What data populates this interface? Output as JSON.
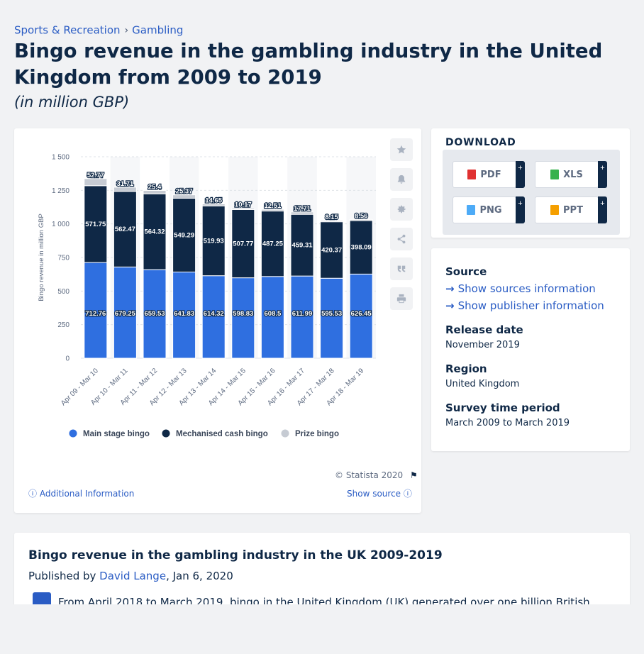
{
  "breadcrumb": [
    "Sports & Recreation",
    "Gambling"
  ],
  "title": "Bingo revenue in the gambling industry in the United Kingdom from 2009 to 2019",
  "subtitle": "(in million GBP)",
  "toolbar_icons": [
    "star-icon",
    "bell-icon",
    "gear-icon",
    "share-icon",
    "quote-icon",
    "print-icon"
  ],
  "download": {
    "heading": "DOWNLOAD",
    "buttons": [
      {
        "label": "PDF",
        "icon": "pdf-file-icon",
        "color": "#e03131"
      },
      {
        "label": "XLS",
        "icon": "xls-file-icon",
        "color": "#37b24d"
      },
      {
        "label": "PNG",
        "icon": "png-file-icon",
        "color": "#4dabf7"
      },
      {
        "label": "PPT",
        "icon": "ppt-file-icon",
        "color": "#f59f00"
      }
    ],
    "plus": "+"
  },
  "info": {
    "source_label": "Source",
    "show_sources": "Show sources information",
    "show_publisher": "Show publisher information",
    "release_label": "Release date",
    "release_value": "November 2019",
    "region_label": "Region",
    "region_value": "United Kingdom",
    "survey_label": "Survey time period",
    "survey_value": "March 2009 to March 2019"
  },
  "chart_footer": {
    "copyright": "© Statista 2020",
    "additional": "Additional Information",
    "show_source": "Show source"
  },
  "text_section": {
    "title": "Bingo revenue in the gambling industry in the UK 2009-2019",
    "published_by": "Published by",
    "author": "David Lange",
    "date": ", Jan 6, 2020",
    "body": "From April 2018 to March 2019, bingo in the United Kingdom (UK) generated over one billion British"
  },
  "colors": {
    "main_stage": "#2f6fe0",
    "mechanised": "#0f2846",
    "prize": "#c6cbd3",
    "accent_link": "#2a5cc4"
  },
  "chart_data": {
    "type": "bar",
    "stacked": true,
    "categories": [
      "Apr 09 - Mar 10",
      "Apr 10 - Mar 11",
      "Apr 11 - Mar 12",
      "Apr 12 - Mar 13",
      "Apr 13 - Mar 14",
      "Apr 14 - Mar 15",
      "Apr 15 - Mar 16",
      "Apr 16 - Mar 17",
      "Apr 17 - Mar 18",
      "Apr 18 - Mar 19"
    ],
    "series": [
      {
        "name": "Main stage bingo",
        "values": [
          712.76,
          679.25,
          659.53,
          641.83,
          614.32,
          598.83,
          608.5,
          611.99,
          595.53,
          626.45
        ],
        "labels": [
          "712.76",
          "679.25",
          "659.53",
          "641.83",
          "614.32",
          "598.83",
          "608.5",
          "611.99",
          "595.53",
          "626.45"
        ]
      },
      {
        "name": "Mechanised cash bingo",
        "values": [
          571.75,
          562.47,
          564.32,
          549.29,
          519.93,
          507.77,
          487.25,
          459.31,
          420.37,
          398.09
        ],
        "labels": [
          "571.75",
          "562.47",
          "564.32",
          "549.29",
          "519.93",
          "507.77",
          "487.25",
          "459.31",
          "420.37",
          "398.09"
        ]
      },
      {
        "name": "Prize bingo",
        "values": [
          52.77,
          31.71,
          25.4,
          25.37,
          14.65,
          10.17,
          12.51,
          17.71,
          8.15,
          8.56
        ],
        "labels": [
          "52.77",
          "31.71",
          "25.4",
          "25.37",
          "14.65",
          "10.17",
          "12.51",
          "17.71",
          "8.15",
          "8.56"
        ]
      }
    ],
    "ylabel": "Bingo revenue in million GBP",
    "xlabel": "",
    "ylim": [
      0,
      1500
    ],
    "yticks": [
      0,
      250,
      500,
      750,
      1000,
      1250,
      1500
    ],
    "ytick_labels": [
      "0",
      "250",
      "500",
      "750",
      "1 000",
      "1 250",
      "1 500"
    ],
    "grid": true,
    "legend": "bottom"
  }
}
